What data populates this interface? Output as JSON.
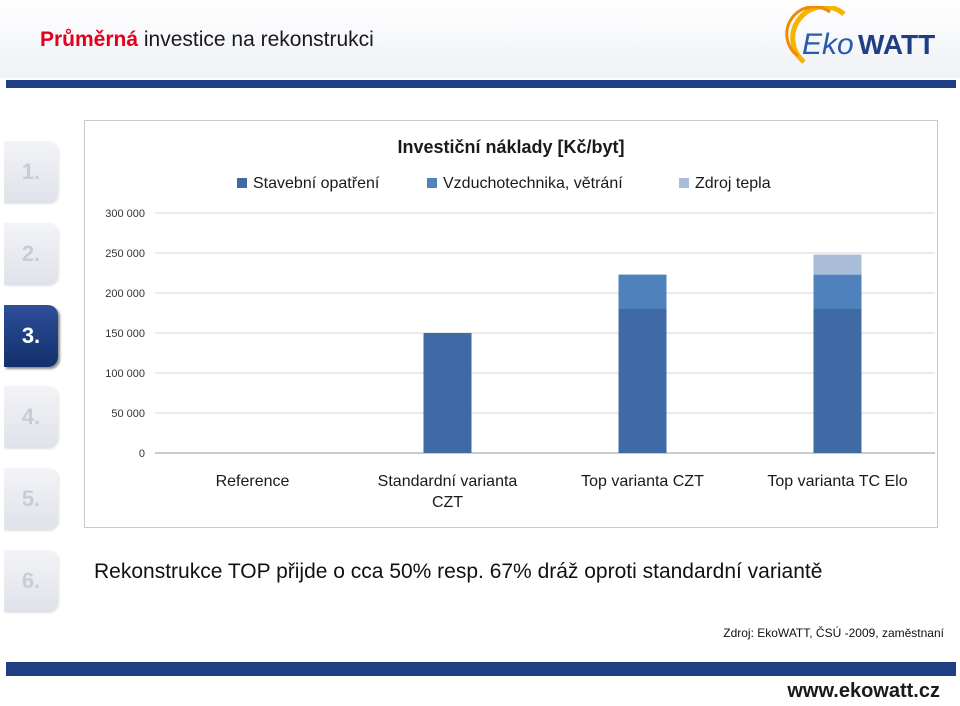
{
  "header": {
    "title_highlight": "Průměrná",
    "title_rest": " investice na rekonstrukci",
    "logo_text_a": "Eko",
    "logo_text_b": "WATT"
  },
  "nav": {
    "items": [
      {
        "label": "1.",
        "active": false
      },
      {
        "label": "2.",
        "active": false
      },
      {
        "label": "3.",
        "active": true
      },
      {
        "label": "4.",
        "active": false
      },
      {
        "label": "5.",
        "active": false
      },
      {
        "label": "6.",
        "active": false
      }
    ]
  },
  "chart_data": {
    "type": "bar",
    "stacked": true,
    "title": "Investiční náklady [Kč/byt]",
    "categories": [
      "Reference",
      "Standardní varianta CZT",
      "Top varianta CZT",
      "Top varianta TC Elo"
    ],
    "category_lines": [
      [
        "Reference"
      ],
      [
        "Standardní varianta",
        "CZT"
      ],
      [
        "Top varianta CZT"
      ],
      [
        "Top varianta TC Elo"
      ]
    ],
    "series": [
      {
        "name": "Stavební opatření",
        "color": "#3f6aa5",
        "values": [
          0,
          150000,
          180000,
          180000
        ]
      },
      {
        "name": "Vzduchotechnika, větrání",
        "color": "#4f81bd",
        "values": [
          0,
          0,
          43000,
          43000
        ]
      },
      {
        "name": "Zdroj tepla",
        "color": "#a9bcd8",
        "values": [
          0,
          0,
          0,
          25000
        ]
      }
    ],
    "y_ticks": [
      "0",
      "50 000",
      "100 000",
      "150 000",
      "200 000",
      "250 000",
      "300 000"
    ],
    "ylim": [
      0,
      300000
    ],
    "grid": true,
    "legend_position": "top"
  },
  "statement": "Rekonstrukce TOP přijde o cca 50% resp. 67% dráž oproti standardní variantě",
  "source": "Zdroj: EkoWATT, ČSÚ -2009, zaměstnaní",
  "footer": {
    "url": "www.ekowatt.cz"
  }
}
